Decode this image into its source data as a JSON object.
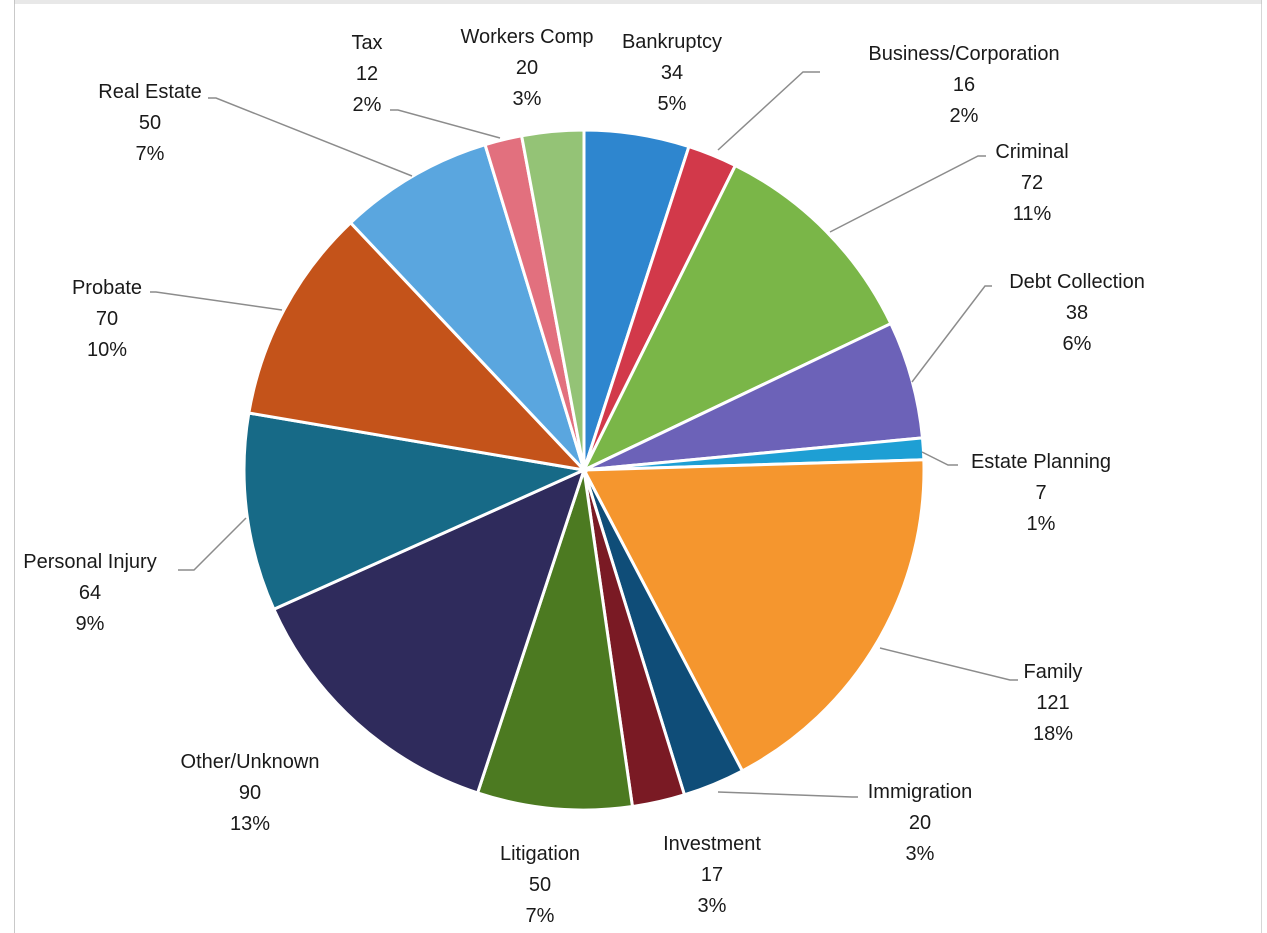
{
  "chart_data": {
    "type": "pie",
    "title": "",
    "legend": "none",
    "slices": [
      {
        "name": "Bankruptcy",
        "value": 34,
        "percent": "5%",
        "color": "#2e86cf"
      },
      {
        "name": "Business/Corporation",
        "value": 16,
        "percent": "2%",
        "color": "#d2394a"
      },
      {
        "name": "Criminal",
        "value": 72,
        "percent": "11%",
        "color": "#7ab648"
      },
      {
        "name": "Debt Collection",
        "value": 38,
        "percent": "6%",
        "color": "#6c62b8"
      },
      {
        "name": "Estate Planning",
        "value": 7,
        "percent": "1%",
        "color": "#1e9fd4"
      },
      {
        "name": "Family",
        "value": 121,
        "percent": "18%",
        "color": "#f5962e"
      },
      {
        "name": "Immigration",
        "value": 20,
        "percent": "3%",
        "color": "#0f4d78"
      },
      {
        "name": "Investment",
        "value": 17,
        "percent": "3%",
        "color": "#7a1a24"
      },
      {
        "name": "Litigation",
        "value": 50,
        "percent": "7%",
        "color": "#4c7a21"
      },
      {
        "name": "Other/Unknown",
        "value": 90,
        "percent": "13%",
        "color": "#2f2b5c"
      },
      {
        "name": "Personal Injury",
        "value": 64,
        "percent": "9%",
        "color": "#176a87"
      },
      {
        "name": "Probate",
        "value": 70,
        "percent": "10%",
        "color": "#c4531a"
      },
      {
        "name": "Real Estate",
        "value": 50,
        "percent": "7%",
        "color": "#5aa6df"
      },
      {
        "name": "Tax",
        "value": 12,
        "percent": "2%",
        "color": "#e2707e"
      },
      {
        "name": "Workers Comp",
        "value": 20,
        "percent": "3%",
        "color": "#94c376"
      }
    ]
  }
}
